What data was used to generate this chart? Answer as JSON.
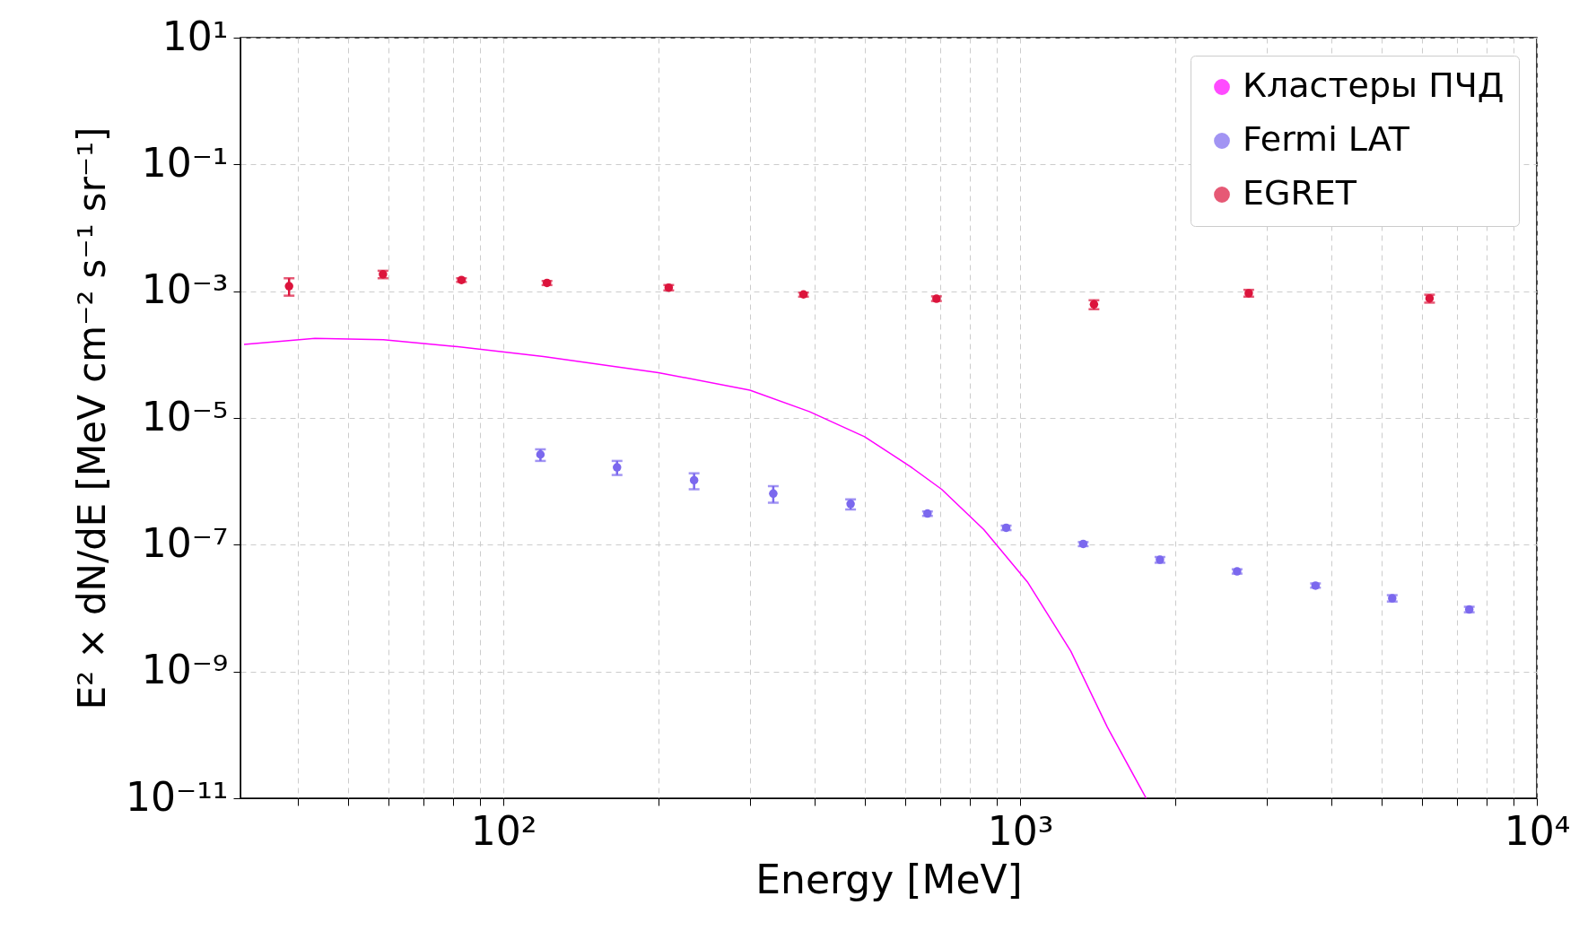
{
  "chart_data": {
    "type": "scatter",
    "xlabel": "Energy [MeV]",
    "ylabel": "E² × dN/dE [MeV cm⁻² s⁻¹ sr⁻¹]",
    "log": "xy",
    "grid": true,
    "legend": "top right",
    "marker": "circle",
    "xlim": [
      31,
      10000
    ],
    "ylim": [
      1e-11,
      10
    ],
    "xticks": [
      {
        "value": 40,
        "label": null
      },
      {
        "value": 50,
        "label": null
      },
      {
        "value": 60,
        "label": null
      },
      {
        "value": 70,
        "label": null
      },
      {
        "value": 80,
        "label": null
      },
      {
        "value": 90,
        "label": null
      },
      {
        "value": 100,
        "label": "10²"
      },
      {
        "value": 200,
        "label": null
      },
      {
        "value": 300,
        "label": null
      },
      {
        "value": 400,
        "label": null
      },
      {
        "value": 500,
        "label": null
      },
      {
        "value": 600,
        "label": null
      },
      {
        "value": 700,
        "label": null
      },
      {
        "value": 800,
        "label": null
      },
      {
        "value": 900,
        "label": null
      },
      {
        "value": 1000,
        "label": "10³"
      },
      {
        "value": 2000,
        "label": null
      },
      {
        "value": 3000,
        "label": null
      },
      {
        "value": 4000,
        "label": null
      },
      {
        "value": 5000,
        "label": null
      },
      {
        "value": 6000,
        "label": null
      },
      {
        "value": 7000,
        "label": null
      },
      {
        "value": 8000,
        "label": null
      },
      {
        "value": 9000,
        "label": null
      },
      {
        "value": 10000,
        "label": "10⁴"
      }
    ],
    "yticks": [
      {
        "value": 1e-11,
        "label": "10⁻¹¹"
      },
      {
        "value": 1e-09,
        "label": "10⁻⁹"
      },
      {
        "value": 1e-07,
        "label": "10⁻⁷"
      },
      {
        "value": 1e-05,
        "label": "10⁻⁵"
      },
      {
        "value": 0.001,
        "label": "10⁻³"
      },
      {
        "value": 0.1,
        "label": "10⁻¹"
      },
      {
        "value": 10,
        "label": "10¹"
      }
    ],
    "series": [
      {
        "name": "Кластеры ПЧД",
        "type": "line",
        "marker": "none",
        "color": "#ff00ff",
        "x": [
          31.5,
          43.2,
          58.6,
          79.6,
          119.6,
          199.5,
          300,
          391,
          500,
          613,
          705,
          851,
          1033,
          1254,
          1475,
          1754
        ],
        "values": [
          0.000145,
          0.00018,
          0.000171,
          0.000136,
          9.3e-05,
          5.2e-05,
          2.75e-05,
          1.26e-05,
          5.06e-06,
          1.72e-06,
          7.5e-07,
          1.73e-07,
          2.6e-08,
          2.08e-09,
          1.33e-10,
          1e-11
        ]
      },
      {
        "name": "Fermi LAT",
        "color": "#7b68ee",
        "x": [
          118,
          166,
          234,
          333,
          470,
          662,
          940,
          1325,
          1865,
          2630,
          3730,
          5250,
          7400
        ],
        "values": [
          2.65e-06,
          1.66e-06,
          1.04e-06,
          6.4e-07,
          4.4e-07,
          3.1e-07,
          1.85e-07,
          1.03e-07,
          5.8e-08,
          3.8e-08,
          2.26e-08,
          1.43e-08,
          9.5e-09
        ],
        "errors": [
          [
            2.1e-06,
            3.2e-06
          ],
          [
            1.26e-06,
            2.1e-06
          ],
          [
            7.5e-07,
            1.34e-06
          ],
          [
            4.6e-07,
            8.4e-07
          ],
          [
            3.6e-07,
            5.2e-07
          ],
          [
            2.85e-07,
            3.35e-07
          ],
          [
            1.7e-07,
            2e-07
          ],
          [
            9.5e-08,
            1.1e-07
          ],
          [
            5.2e-08,
            6.4e-08
          ],
          [
            3.5e-08,
            4.1e-08
          ],
          [
            2.1e-08,
            2.45e-08
          ],
          [
            1.27e-08,
            1.6e-08
          ],
          [
            8.6e-09,
            1.05e-08
          ]
        ]
      },
      {
        "name": "EGRET",
        "color": "#dc143c",
        "x": [
          38.5,
          58.5,
          83,
          121.5,
          209,
          381,
          689,
          1390,
          2770,
          6200
        ],
        "values": [
          0.0012,
          0.00185,
          0.0015,
          0.00135,
          0.00114,
          0.00089,
          0.00076,
          0.00062,
          0.00093,
          0.00077
        ],
        "errors": [
          [
            0.00085,
            0.0016
          ],
          [
            0.0016,
            0.0021
          ],
          [
            0.0014,
            0.0016
          ],
          [
            0.00125,
            0.00145
          ],
          [
            0.00103,
            0.00125
          ],
          [
            0.00082,
            0.00095
          ],
          [
            0.0007,
            0.00083
          ],
          [
            0.00052,
            0.00072
          ],
          [
            0.00082,
            0.00105
          ],
          [
            0.00066,
            0.00088
          ]
        ]
      }
    ]
  }
}
